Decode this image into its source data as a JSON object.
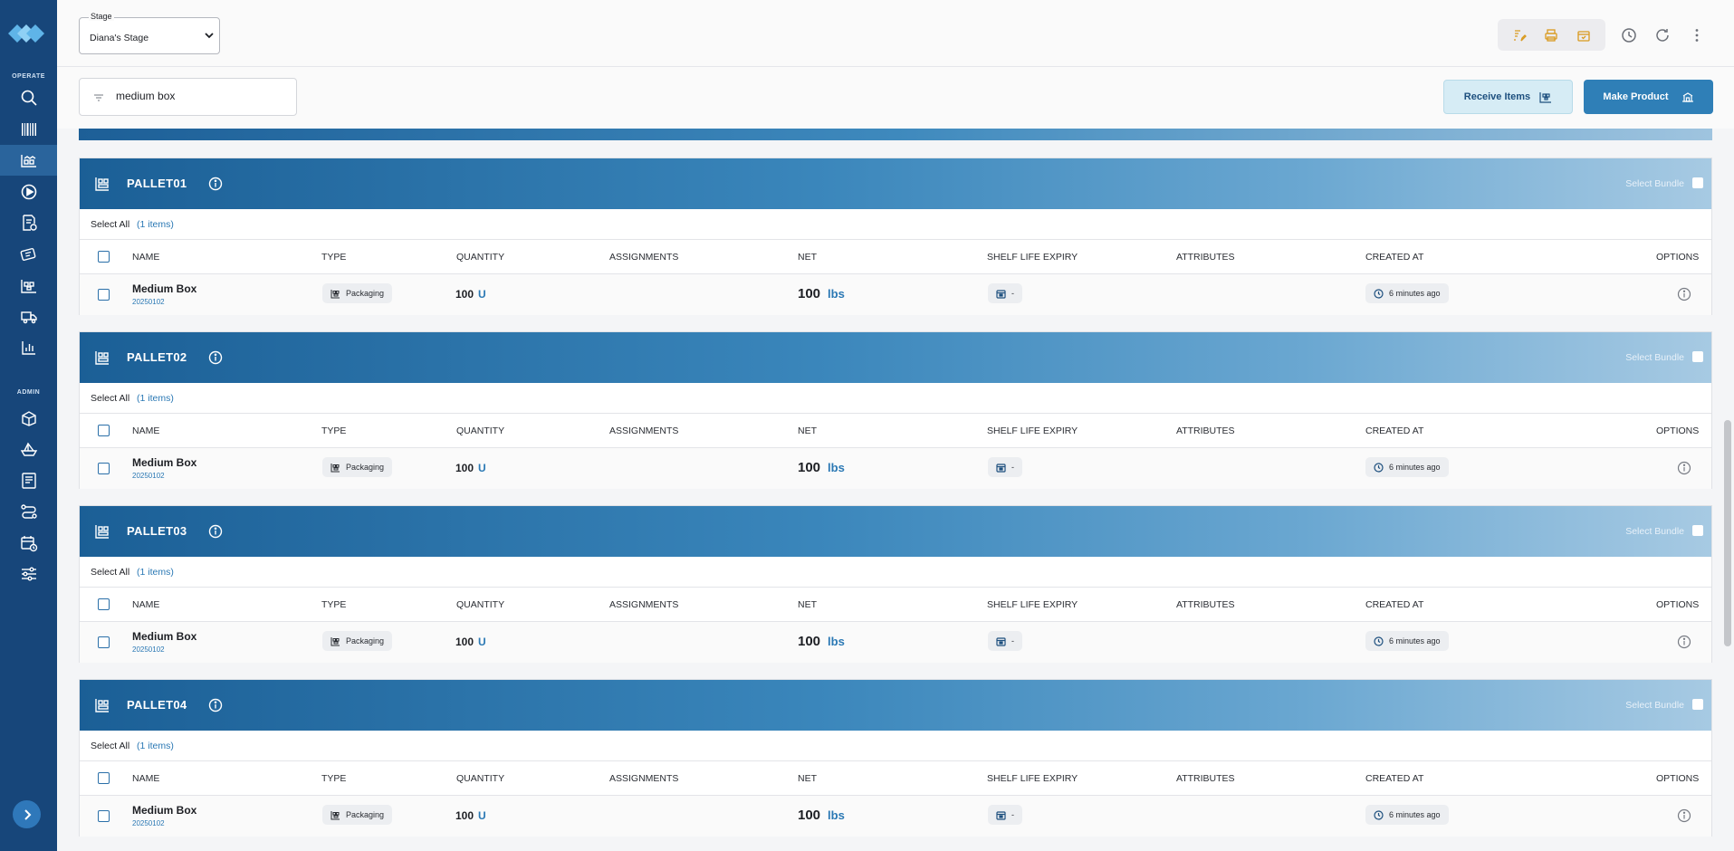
{
  "sidebar": {
    "sections": [
      "OPERATE",
      "ADMIN"
    ],
    "operate_icons": [
      "search-icon",
      "barcode-icon",
      "warehouse-icon",
      "play-icon",
      "report-icon",
      "tag-icon",
      "pallet-icon",
      "truck-icon",
      "chart-icon"
    ],
    "admin_icons": [
      "package-icon",
      "ship-icon",
      "document-icon",
      "route-icon",
      "calendar-icon",
      "sliders-icon"
    ]
  },
  "header": {
    "stage_label": "Stage",
    "stage_value": "Diana's Stage"
  },
  "filter": {
    "search_value": "medium box"
  },
  "actions": {
    "receive_label": "Receive Items",
    "make_label": "Make Product"
  },
  "columns": [
    "NAME",
    "TYPE",
    "QUANTITY",
    "ASSIGNMENTS",
    "NET",
    "SHELF LIFE EXPIRY",
    "ATTRIBUTES",
    "CREATED AT",
    "OPTIONS"
  ],
  "pallets": [
    {
      "name": "PALLET01",
      "select_bundle": "Select Bundle",
      "select_all": "Select All",
      "count": "(1 items)",
      "item": {
        "name": "Medium Box",
        "sku": "20250102",
        "type": "Packaging",
        "quantity": "100",
        "quantity_unit": "U",
        "net": "100",
        "net_unit": "lbs",
        "expiry": "-",
        "created": "6 minutes ago"
      }
    },
    {
      "name": "PALLET02",
      "select_bundle": "Select Bundle",
      "select_all": "Select All",
      "count": "(1 items)",
      "item": {
        "name": "Medium Box",
        "sku": "20250102",
        "type": "Packaging",
        "quantity": "100",
        "quantity_unit": "U",
        "net": "100",
        "net_unit": "lbs",
        "expiry": "-",
        "created": "6 minutes ago"
      }
    },
    {
      "name": "PALLET03",
      "select_bundle": "Select Bundle",
      "select_all": "Select All",
      "count": "(1 items)",
      "item": {
        "name": "Medium Box",
        "sku": "20250102",
        "type": "Packaging",
        "quantity": "100",
        "quantity_unit": "U",
        "net": "100",
        "net_unit": "lbs",
        "expiry": "-",
        "created": "6 minutes ago"
      }
    },
    {
      "name": "PALLET04",
      "select_bundle": "Select Bundle",
      "select_all": "Select All",
      "count": "(1 items)",
      "item": {
        "name": "Medium Box",
        "sku": "20250102",
        "type": "Packaging",
        "quantity": "100",
        "quantity_unit": "U",
        "net": "100",
        "net_unit": "lbs",
        "expiry": "-",
        "created": "6 minutes ago"
      }
    }
  ],
  "colors": {
    "sidebar": "#17467a",
    "accent": "#2a78b4",
    "header_band_start": "#1b5f96",
    "header_band_end": "#a7cae3"
  }
}
